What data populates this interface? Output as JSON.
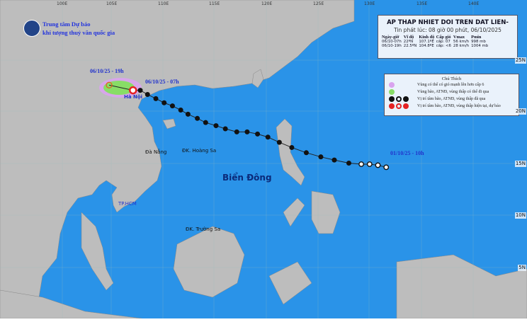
{
  "organization": {
    "line1": "Trung tâm Dự báo",
    "line2": "khí tượng thuỷ văn quốc gia"
  },
  "bulletin": {
    "title": "AP THAP NHIET DOI TREN DAT LIEN-",
    "issued": "Tin phát lúc: 08 giờ 00 phút, 06/10/2025",
    "columns": [
      "Ngày-giờ",
      "Vĩ độ",
      "Kinh độ",
      "Cấp gió",
      "Vmax",
      "Pmin"
    ],
    "rows": [
      [
        "06/10-07h",
        "22ºN",
        "107.1ºE",
        "cấp: 07",
        "56 km/h",
        "998 mb"
      ],
      [
        "06/10-19h",
        "22.5ºN",
        "104.8ºE",
        "cấp: <6",
        "28 km/h",
        "1004 mb"
      ]
    ]
  },
  "legend": {
    "title": "Chú Thích",
    "items": [
      {
        "label": "Vùng có thể có gió mạnh lên hơn cấp 6",
        "color": "#d9a3ee"
      },
      {
        "label": "Vùng bão, ATNĐ, vùng thấp có thể đi qua",
        "color": "#88dd66"
      },
      {
        "label": "Vị trí tâm bão, ATNĐ, vùng thấp đã qua",
        "color": "#111111"
      },
      {
        "label": "Vị trí tâm bão, ATNĐ, vùng thấp hiện tại, dự báo",
        "color": "#e52222"
      }
    ]
  },
  "track_labels": {
    "forecast": "06/10/25 - 19h",
    "current": "06/10/25 - 07h",
    "start": "01/10/25 - 10h"
  },
  "places": {
    "hanoi": "Hà Nội",
    "danang": "Đà Nẵng",
    "hoangsa": "ĐK. Hoàng Sa",
    "hcm": "TP.HCM",
    "truongsa": "ĐK. Trường Sa",
    "sea": "Biển Đông"
  },
  "axes": {
    "lon": [
      "100E",
      "105E",
      "110E",
      "115E",
      "120E",
      "125E",
      "130E",
      "135E",
      "140E"
    ],
    "lat": [
      "25N",
      "20N",
      "15N",
      "10N",
      "5N"
    ]
  },
  "track": [
    [
      131.5,
      14.6
    ],
    [
      130.7,
      14.8
    ],
    [
      129.9,
      14.9
    ],
    [
      129.1,
      14.9
    ],
    [
      127.9,
      15.0
    ],
    [
      126.5,
      15.3
    ],
    [
      125.2,
      15.6
    ],
    [
      123.8,
      16.0
    ],
    [
      122.4,
      16.5
    ],
    [
      121.2,
      17.0
    ],
    [
      120.1,
      17.5
    ],
    [
      119.1,
      17.8
    ],
    [
      118.1,
      18.0
    ],
    [
      117.1,
      18.0
    ],
    [
      116.0,
      18.3
    ],
    [
      115.1,
      18.6
    ],
    [
      114.1,
      18.9
    ],
    [
      113.3,
      19.3
    ],
    [
      112.4,
      19.7
    ],
    [
      111.7,
      20.1
    ],
    [
      110.9,
      20.5
    ],
    [
      110.1,
      20.8
    ],
    [
      109.3,
      21.2
    ],
    [
      108.5,
      21.6
    ],
    [
      107.8,
      22.0
    ]
  ],
  "current": [
    107.1,
    22.0
  ],
  "forecast_point": [
    104.8,
    22.5
  ]
}
